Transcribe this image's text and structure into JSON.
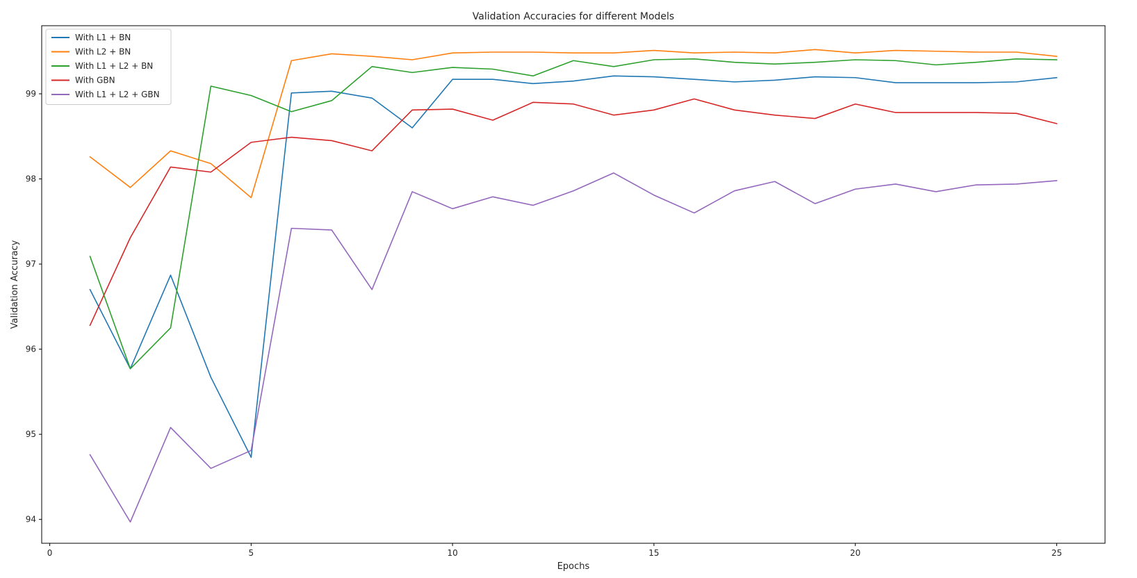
{
  "chart_data": {
    "type": "line",
    "title": "Validation Accuracies for different Models",
    "xlabel": "Epochs",
    "ylabel": "Validation Accuracy",
    "xlim": [
      -0.2,
      26.2
    ],
    "ylim": [
      93.72,
      99.8
    ],
    "xticks": [
      0,
      5,
      10,
      15,
      20,
      25
    ],
    "yticks": [
      94,
      95,
      96,
      97,
      98,
      99
    ],
    "grid": false,
    "legend_position": "top-left",
    "x": [
      1,
      2,
      3,
      4,
      5,
      6,
      7,
      8,
      9,
      10,
      11,
      12,
      13,
      14,
      15,
      16,
      17,
      18,
      19,
      20,
      21,
      22,
      23,
      24,
      25
    ],
    "series": [
      {
        "name": "With L1 + BN",
        "color": "#1f77b4",
        "values": [
          96.7,
          95.77,
          96.87,
          95.67,
          94.73,
          99.01,
          99.03,
          98.95,
          98.6,
          99.17,
          99.17,
          99.12,
          99.15,
          99.21,
          99.2,
          99.17,
          99.14,
          99.16,
          99.2,
          99.19,
          99.13,
          99.13,
          99.13,
          99.14,
          99.19
        ]
      },
      {
        "name": "With L2 + BN",
        "color": "#ff7f0e",
        "values": [
          98.26,
          97.9,
          98.33,
          98.18,
          97.78,
          99.39,
          99.47,
          99.44,
          99.4,
          99.48,
          99.49,
          99.49,
          99.48,
          99.48,
          99.51,
          99.48,
          99.49,
          99.48,
          99.52,
          99.48,
          99.51,
          99.5,
          99.49,
          99.49,
          99.44
        ]
      },
      {
        "name": "With L1 + L2 + BN",
        "color": "#2ca02c",
        "values": [
          97.09,
          95.77,
          96.25,
          99.09,
          98.98,
          98.79,
          98.92,
          99.32,
          99.25,
          99.31,
          99.29,
          99.21,
          99.39,
          99.32,
          99.4,
          99.41,
          99.37,
          99.35,
          99.37,
          99.4,
          99.39,
          99.34,
          99.37,
          99.41,
          99.4
        ]
      },
      {
        "name": "With GBN",
        "color": "#d62728",
        "values": [
          96.28,
          97.31,
          98.14,
          98.08,
          98.43,
          98.49,
          98.45,
          98.33,
          98.81,
          98.82,
          98.69,
          98.9,
          98.88,
          98.75,
          98.81,
          98.94,
          98.81,
          98.75,
          98.71,
          98.88,
          98.78,
          98.78,
          98.78,
          98.77,
          98.65
        ]
      },
      {
        "name": "With L1 + L2 + GBN",
        "color": "#9467bd",
        "values": [
          94.76,
          93.97,
          95.08,
          94.6,
          94.81,
          97.42,
          97.4,
          96.7,
          97.85,
          97.65,
          97.79,
          97.69,
          97.86,
          98.07,
          97.81,
          97.6,
          97.86,
          97.97,
          97.71,
          97.88,
          97.94,
          97.85,
          97.93,
          97.94,
          97.98
        ]
      }
    ]
  }
}
